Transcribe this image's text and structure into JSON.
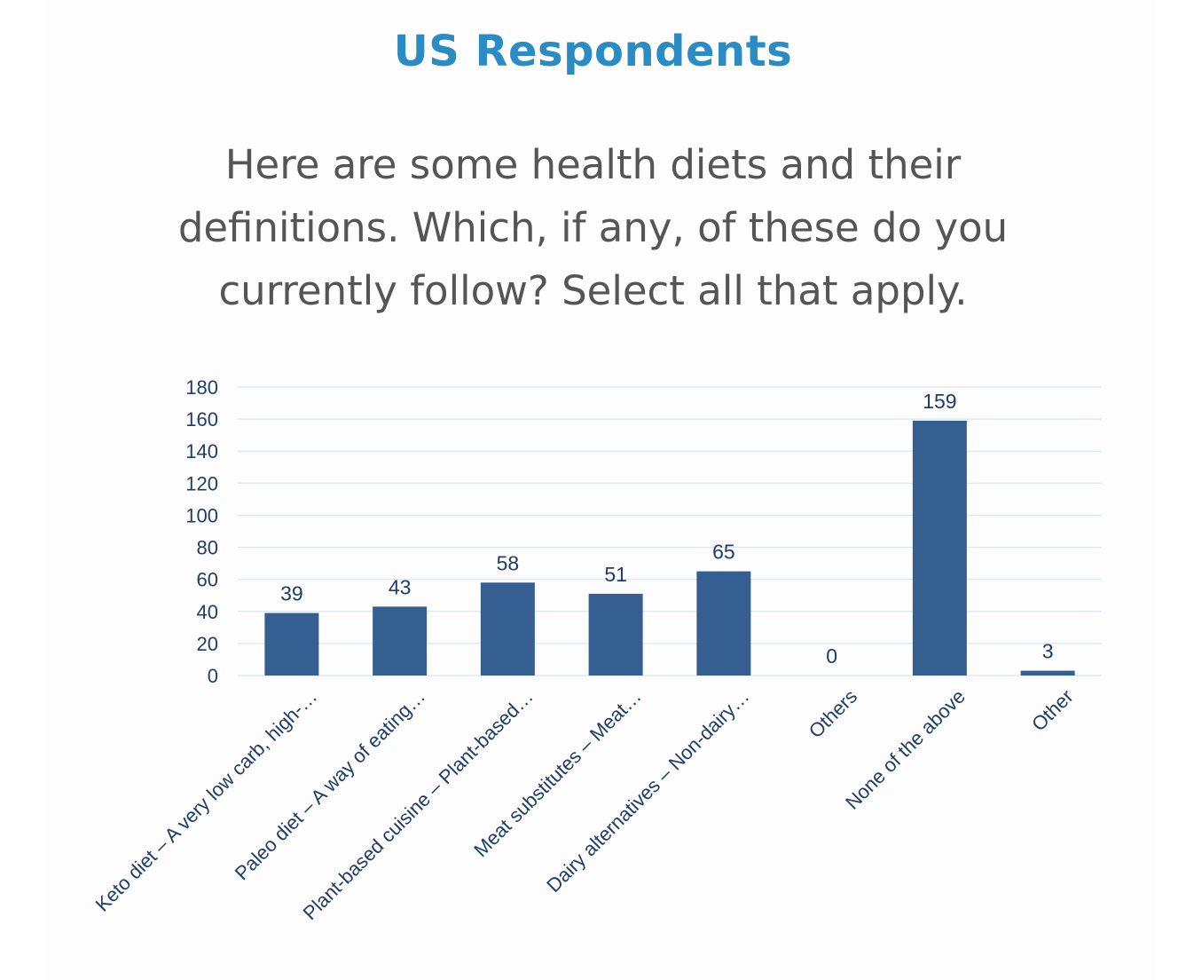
{
  "header": {
    "title": "US Respondents",
    "question": "Here are some health diets and their definitions. Which, if any, of these do you currently follow? Select all that apply."
  },
  "colors": {
    "heading": "#2b8cc4",
    "bar": "#365f91",
    "text": "#1f3d66"
  },
  "chart_data": {
    "type": "bar",
    "categories": [
      "Keto diet – A very low carb, high-…",
      "Paleo diet – A way of eating…",
      "Plant-based cuisine – Plant-based…",
      "Meat substitutes – Meat…",
      "Dairy alternatives – Non-dairy…",
      "Others",
      "None of the above",
      "Other"
    ],
    "values": [
      39,
      43,
      58,
      51,
      65,
      0,
      159,
      3
    ],
    "ylim": [
      0,
      180
    ],
    "yticks": [
      0,
      20,
      40,
      60,
      80,
      100,
      120,
      140,
      160,
      180
    ],
    "grid": true,
    "data_labels": true
  }
}
